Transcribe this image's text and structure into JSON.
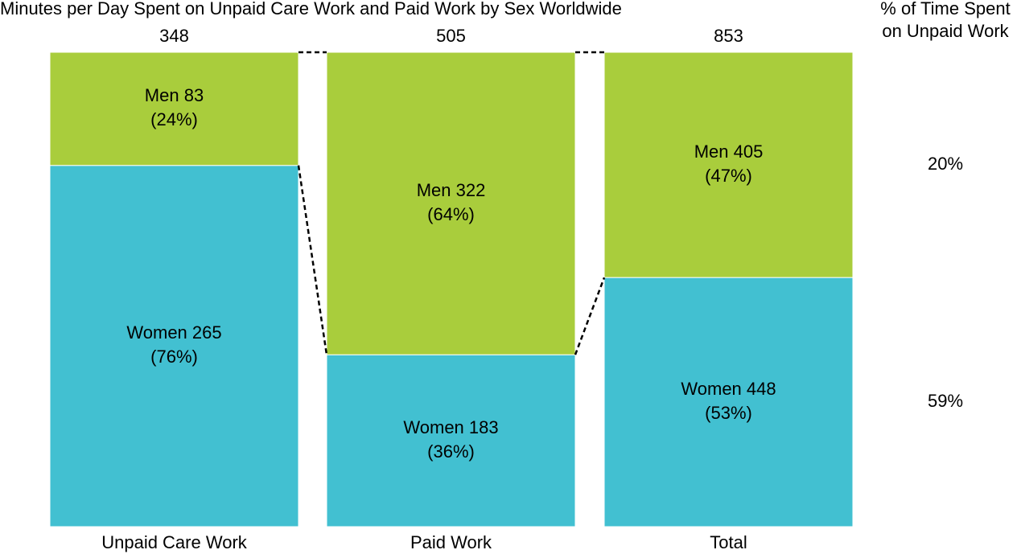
{
  "chart_data": {
    "type": "bar",
    "stacking": "percent",
    "title": "Minutes per Day Spent on Unpaid Care Work and Paid Work by Sex Worldwide",
    "categories": [
      "Unpaid Care Work",
      "Paid Work",
      "Total"
    ],
    "totals": [
      348,
      505,
      853
    ],
    "series": [
      {
        "name": "Women",
        "color": "#42c0d1",
        "values": [
          265,
          183,
          448
        ],
        "value_labels": [
          "Women 265",
          "Women 183",
          "Women 448"
        ],
        "percent": [
          76,
          36,
          53
        ],
        "percent_labels": [
          "(76%)",
          "(36%)",
          "(53%)"
        ],
        "unpaid_share": 59,
        "unpaid_share_label": "59%"
      },
      {
        "name": "Men",
        "color": "#a9cd3c",
        "values": [
          83,
          322,
          405
        ],
        "value_labels": [
          "Men 83",
          "Men 322",
          "Men 405"
        ],
        "percent": [
          24,
          64,
          47
        ],
        "percent_labels": [
          "(24%)",
          "(64%)",
          "(47%)"
        ],
        "unpaid_share": 20,
        "unpaid_share_label": "20%"
      }
    ],
    "side_title": [
      "% of Time Spent",
      "on Unpaid Work"
    ]
  }
}
